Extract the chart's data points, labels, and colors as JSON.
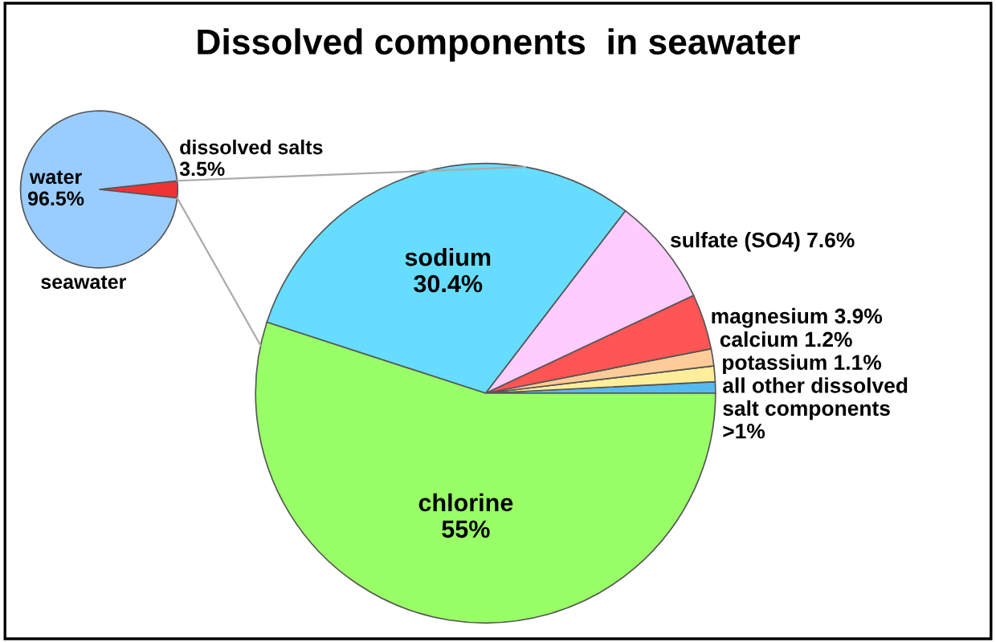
{
  "chart_data": [
    {
      "type": "pie",
      "title": "Dissolved components  in seawater",
      "categories": [
        "all other dissolved\nsalt components",
        "potassium",
        "calcium",
        "magnesium",
        "sulfate (SO4)",
        "sodium",
        "chlorine"
      ],
      "values": [
        0.8,
        1.1,
        1.2,
        3.9,
        7.6,
        30.4,
        55
      ],
      "value_labels": [
        ">1%",
        "1.1%",
        "1.2%",
        "3.9%",
        "7.6%",
        "30.4%",
        "55%"
      ],
      "colors": [
        "#55bbee",
        "#ffee99",
        "#ffcc99",
        "#ff5555",
        "#ffccff",
        "#66ddff",
        "#99ff66"
      ]
    },
    {
      "type": "pie",
      "xlabel": "seawater",
      "categories": [
        "dissolved salts",
        "water"
      ],
      "values": [
        3.5,
        96.5
      ],
      "value_labels": [
        "3.5%",
        "96.5%"
      ],
      "colors": [
        "#ee3333",
        "#99ccff"
      ]
    }
  ]
}
